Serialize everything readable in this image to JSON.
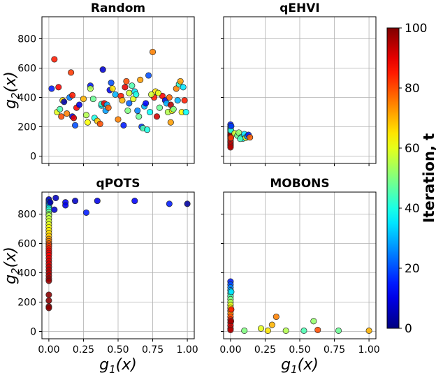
{
  "chart_data": [
    {
      "type": "scatter",
      "title": "Random",
      "xlabel": "",
      "ylabel": "g2(x)",
      "xlim": [
        -0.05,
        1.05
      ],
      "ylim": [
        -50,
        950
      ],
      "xticks": [
        0.0,
        0.25,
        0.5,
        0.75,
        1.0
      ],
      "xtick_labels": [
        "",
        "",
        "",
        "",
        ""
      ],
      "yticks": [
        0,
        200,
        400,
        600,
        800
      ],
      "ytick_labels": [
        "0",
        "200",
        "400",
        "600",
        "800"
      ],
      "grid": true,
      "color_by": "iteration",
      "points": [
        [
          0.02,
          460,
          15
        ],
        [
          0.04,
          660,
          85
        ],
        [
          0.07,
          470,
          88
        ],
        [
          0.06,
          300,
          60
        ],
        [
          0.08,
          320,
          45
        ],
        [
          0.09,
          270,
          80
        ],
        [
          0.1,
          380,
          65
        ],
        [
          0.11,
          370,
          5
        ],
        [
          0.13,
          290,
          75
        ],
        [
          0.15,
          400,
          25
        ],
        [
          0.16,
          570,
          82
        ],
        [
          0.17,
          415,
          85
        ],
        [
          0.17,
          270,
          12
        ],
        [
          0.18,
          260,
          90
        ],
        [
          0.19,
          210,
          20
        ],
        [
          0.2,
          330,
          88
        ],
        [
          0.22,
          350,
          10
        ],
        [
          0.25,
          390,
          70
        ],
        [
          0.27,
          280,
          55
        ],
        [
          0.28,
          230,
          62
        ],
        [
          0.3,
          480,
          15
        ],
        [
          0.3,
          460,
          55
        ],
        [
          0.32,
          390,
          48
        ],
        [
          0.33,
          260,
          40
        ],
        [
          0.35,
          240,
          68
        ],
        [
          0.37,
          220,
          80
        ],
        [
          0.38,
          345,
          35
        ],
        [
          0.38,
          355,
          42
        ],
        [
          0.39,
          590,
          8
        ],
        [
          0.4,
          360,
          90
        ],
        [
          0.41,
          310,
          28
        ],
        [
          0.42,
          350,
          30
        ],
        [
          0.43,
          330,
          78
        ],
        [
          0.44,
          450,
          12
        ],
        [
          0.45,
          500,
          20
        ],
        [
          0.46,
          460,
          65
        ],
        [
          0.48,
          420,
          30
        ],
        [
          0.5,
          250,
          75
        ],
        [
          0.52,
          410,
          85
        ],
        [
          0.53,
          380,
          70
        ],
        [
          0.54,
          210,
          15
        ],
        [
          0.55,
          470,
          90
        ],
        [
          0.56,
          510,
          80
        ],
        [
          0.57,
          310,
          50
        ],
        [
          0.58,
          360,
          22
        ],
        [
          0.58,
          430,
          58
        ],
        [
          0.6,
          480,
          45
        ],
        [
          0.61,
          390,
          60
        ],
        [
          0.62,
          440,
          35
        ],
        [
          0.63,
          420,
          40
        ],
        [
          0.64,
          310,
          25
        ],
        [
          0.65,
          270,
          48
        ],
        [
          0.66,
          520,
          72
        ],
        [
          0.67,
          200,
          18
        ],
        [
          0.68,
          190,
          45
        ],
        [
          0.69,
          340,
          30
        ],
        [
          0.7,
          360,
          12
        ],
        [
          0.71,
          180,
          40
        ],
        [
          0.72,
          550,
          20
        ],
        [
          0.73,
          300,
          38
        ],
        [
          0.75,
          710,
          75
        ],
        [
          0.76,
          400,
          85
        ],
        [
          0.77,
          440,
          65
        ],
        [
          0.78,
          270,
          92
        ],
        [
          0.8,
          330,
          48
        ],
        [
          0.82,
          410,
          88
        ],
        [
          0.84,
          380,
          10
        ],
        [
          0.85,
          360,
          30
        ],
        [
          0.86,
          300,
          55
        ],
        [
          0.87,
          400,
          78
        ],
        [
          0.88,
          230,
          72
        ],
        [
          0.88,
          350,
          95
        ],
        [
          0.89,
          310,
          62
        ],
        [
          0.9,
          320,
          50
        ],
        [
          0.92,
          460,
          75
        ],
        [
          0.93,
          380,
          30
        ],
        [
          0.94,
          490,
          42
        ],
        [
          0.95,
          510,
          72
        ],
        [
          0.96,
          300,
          63
        ],
        [
          0.97,
          470,
          35
        ],
        [
          0.98,
          380,
          85
        ],
        [
          0.99,
          300,
          38
        ],
        [
          0.74,
          420,
          58
        ],
        [
          0.79,
          430,
          60
        ]
      ]
    },
    {
      "type": "scatter",
      "title": "qEHVI",
      "xlabel": "",
      "ylabel": "",
      "xlim": [
        -0.05,
        1.05
      ],
      "ylim": [
        -50,
        950
      ],
      "xticks": [
        0.0,
        0.25,
        0.5,
        0.75,
        1.0
      ],
      "xtick_labels": [
        "",
        "",
        "",
        "",
        ""
      ],
      "yticks": [
        0,
        200,
        400,
        600,
        800
      ],
      "ytick_labels": [
        "",
        "",
        "",
        "",
        ""
      ],
      "grid": true,
      "color_by": "iteration",
      "points": [
        [
          0.0,
          215,
          15
        ],
        [
          0.0,
          200,
          22
        ],
        [
          0.0,
          190,
          30
        ],
        [
          0.0,
          180,
          35
        ],
        [
          0.0,
          170,
          45
        ],
        [
          0.0,
          160,
          50
        ],
        [
          0.0,
          150,
          55
        ],
        [
          0.0,
          140,
          62
        ],
        [
          0.0,
          130,
          70
        ],
        [
          0.0,
          120,
          75
        ],
        [
          0.0,
          110,
          80
        ],
        [
          0.0,
          100,
          85
        ],
        [
          0.0,
          90,
          88
        ],
        [
          0.0,
          80,
          90
        ],
        [
          0.0,
          70,
          92
        ],
        [
          0.0,
          60,
          95
        ],
        [
          0.0,
          135,
          97
        ],
        [
          0.0,
          145,
          99
        ],
        [
          0.003,
          175,
          40
        ],
        [
          0.003,
          125,
          82
        ],
        [
          0.005,
          205,
          18
        ],
        [
          0.03,
          155,
          58
        ],
        [
          0.05,
          140,
          48
        ],
        [
          0.06,
          160,
          52
        ],
        [
          0.08,
          130,
          42
        ],
        [
          0.09,
          120,
          38
        ],
        [
          0.1,
          150,
          35
        ],
        [
          0.11,
          125,
          60
        ],
        [
          0.12,
          135,
          25
        ],
        [
          0.13,
          145,
          15
        ],
        [
          0.14,
          128,
          78
        ],
        [
          0.07,
          118,
          44
        ]
      ]
    },
    {
      "type": "scatter",
      "title": "qPOTS",
      "xlabel": "g1(x)",
      "ylabel": "g2(x)",
      "xlim": [
        -0.05,
        1.05
      ],
      "ylim": [
        -50,
        950
      ],
      "xticks": [
        0.0,
        0.25,
        0.5,
        0.75,
        1.0
      ],
      "xtick_labels": [
        "0.00",
        "0.25",
        "0.50",
        "0.75",
        "1.00"
      ],
      "yticks": [
        0,
        200,
        400,
        600,
        800
      ],
      "ytick_labels": [
        "0",
        "200",
        "400",
        "600",
        "800"
      ],
      "grid": true,
      "color_by": "iteration",
      "points": [
        [
          0.0,
          900,
          10
        ],
        [
          0.0,
          890,
          15
        ],
        [
          0.0,
          880,
          20
        ],
        [
          0.0,
          870,
          25
        ],
        [
          0.0,
          860,
          28
        ],
        [
          0.0,
          850,
          32
        ],
        [
          0.0,
          840,
          38
        ],
        [
          0.0,
          830,
          42
        ],
        [
          0.0,
          815,
          48
        ],
        [
          0.0,
          800,
          52
        ],
        [
          0.0,
          790,
          55
        ],
        [
          0.0,
          770,
          57
        ],
        [
          0.0,
          750,
          58
        ],
        [
          0.0,
          730,
          60
        ],
        [
          0.0,
          710,
          62
        ],
        [
          0.0,
          690,
          64
        ],
        [
          0.0,
          670,
          66
        ],
        [
          0.0,
          650,
          68
        ],
        [
          0.0,
          630,
          72
        ],
        [
          0.0,
          615,
          75
        ],
        [
          0.0,
          600,
          78
        ],
        [
          0.0,
          590,
          80
        ],
        [
          0.0,
          580,
          82
        ],
        [
          0.0,
          565,
          85
        ],
        [
          0.0,
          550,
          87
        ],
        [
          0.0,
          535,
          88
        ],
        [
          0.0,
          520,
          89
        ],
        [
          0.0,
          500,
          90
        ],
        [
          0.0,
          480,
          91
        ],
        [
          0.0,
          460,
          92
        ],
        [
          0.0,
          440,
          93
        ],
        [
          0.0,
          420,
          94
        ],
        [
          0.0,
          400,
          95
        ],
        [
          0.0,
          380,
          96
        ],
        [
          0.0,
          360,
          97
        ],
        [
          0.0,
          345,
          98
        ],
        [
          0.0,
          250,
          99
        ],
        [
          0.0,
          210,
          99
        ],
        [
          0.0,
          170,
          99
        ],
        [
          0.0,
          160,
          99
        ],
        [
          0.01,
          880,
          5
        ],
        [
          0.04,
          830,
          8
        ],
        [
          0.05,
          910,
          6
        ],
        [
          0.12,
          880,
          12
        ],
        [
          0.12,
          860,
          10
        ],
        [
          0.19,
          890,
          7
        ],
        [
          0.27,
          810,
          15
        ],
        [
          0.35,
          890,
          10
        ],
        [
          0.62,
          890,
          12
        ],
        [
          0.87,
          870,
          15
        ],
        [
          1.0,
          870,
          3
        ]
      ]
    },
    {
      "type": "scatter",
      "title": "MOBONS",
      "xlabel": "g1(x)",
      "ylabel": "",
      "xlim": [
        -0.05,
        1.05
      ],
      "ylim": [
        -50,
        950
      ],
      "xticks": [
        0.0,
        0.25,
        0.5,
        0.75,
        1.0
      ],
      "xtick_labels": [
        "0.00",
        "0.25",
        "0.50",
        "0.75",
        "1.00"
      ],
      "yticks": [
        0,
        200,
        400,
        600,
        800
      ],
      "ytick_labels": [
        "",
        "",
        "",
        "",
        ""
      ],
      "grid": true,
      "color_by": "iteration",
      "points": [
        [
          0.0,
          340,
          15
        ],
        [
          0.0,
          320,
          20
        ],
        [
          0.0,
          300,
          25
        ],
        [
          0.0,
          280,
          30
        ],
        [
          0.0,
          260,
          40
        ],
        [
          0.0,
          240,
          45
        ],
        [
          0.0,
          220,
          50
        ],
        [
          0.0,
          200,
          55
        ],
        [
          0.0,
          180,
          60
        ],
        [
          0.0,
          160,
          65
        ],
        [
          0.0,
          140,
          70
        ],
        [
          0.0,
          120,
          75
        ],
        [
          0.0,
          100,
          80
        ],
        [
          0.0,
          80,
          85
        ],
        [
          0.0,
          60,
          88
        ],
        [
          0.0,
          40,
          90
        ],
        [
          0.0,
          20,
          92
        ],
        [
          0.0,
          10,
          95
        ],
        [
          0.005,
          270,
          35
        ],
        [
          0.005,
          150,
          85
        ],
        [
          0.003,
          70,
          97
        ],
        [
          0.1,
          5,
          50
        ],
        [
          0.22,
          20,
          60
        ],
        [
          0.27,
          5,
          65
        ],
        [
          0.3,
          45,
          70
        ],
        [
          0.33,
          100,
          75
        ],
        [
          0.4,
          5,
          55
        ],
        [
          0.53,
          5,
          45
        ],
        [
          0.6,
          70,
          52
        ],
        [
          0.63,
          10,
          80
        ],
        [
          0.78,
          5,
          48
        ],
        [
          1.0,
          5,
          70
        ]
      ]
    }
  ],
  "colorbar": {
    "label": "Iteration, t",
    "min": 0,
    "max": 100,
    "ticks": [
      0,
      20,
      40,
      60,
      80,
      100
    ],
    "tick_labels": [
      "0",
      "20",
      "40",
      "60",
      "80",
      "100"
    ],
    "colormap": "jet"
  }
}
